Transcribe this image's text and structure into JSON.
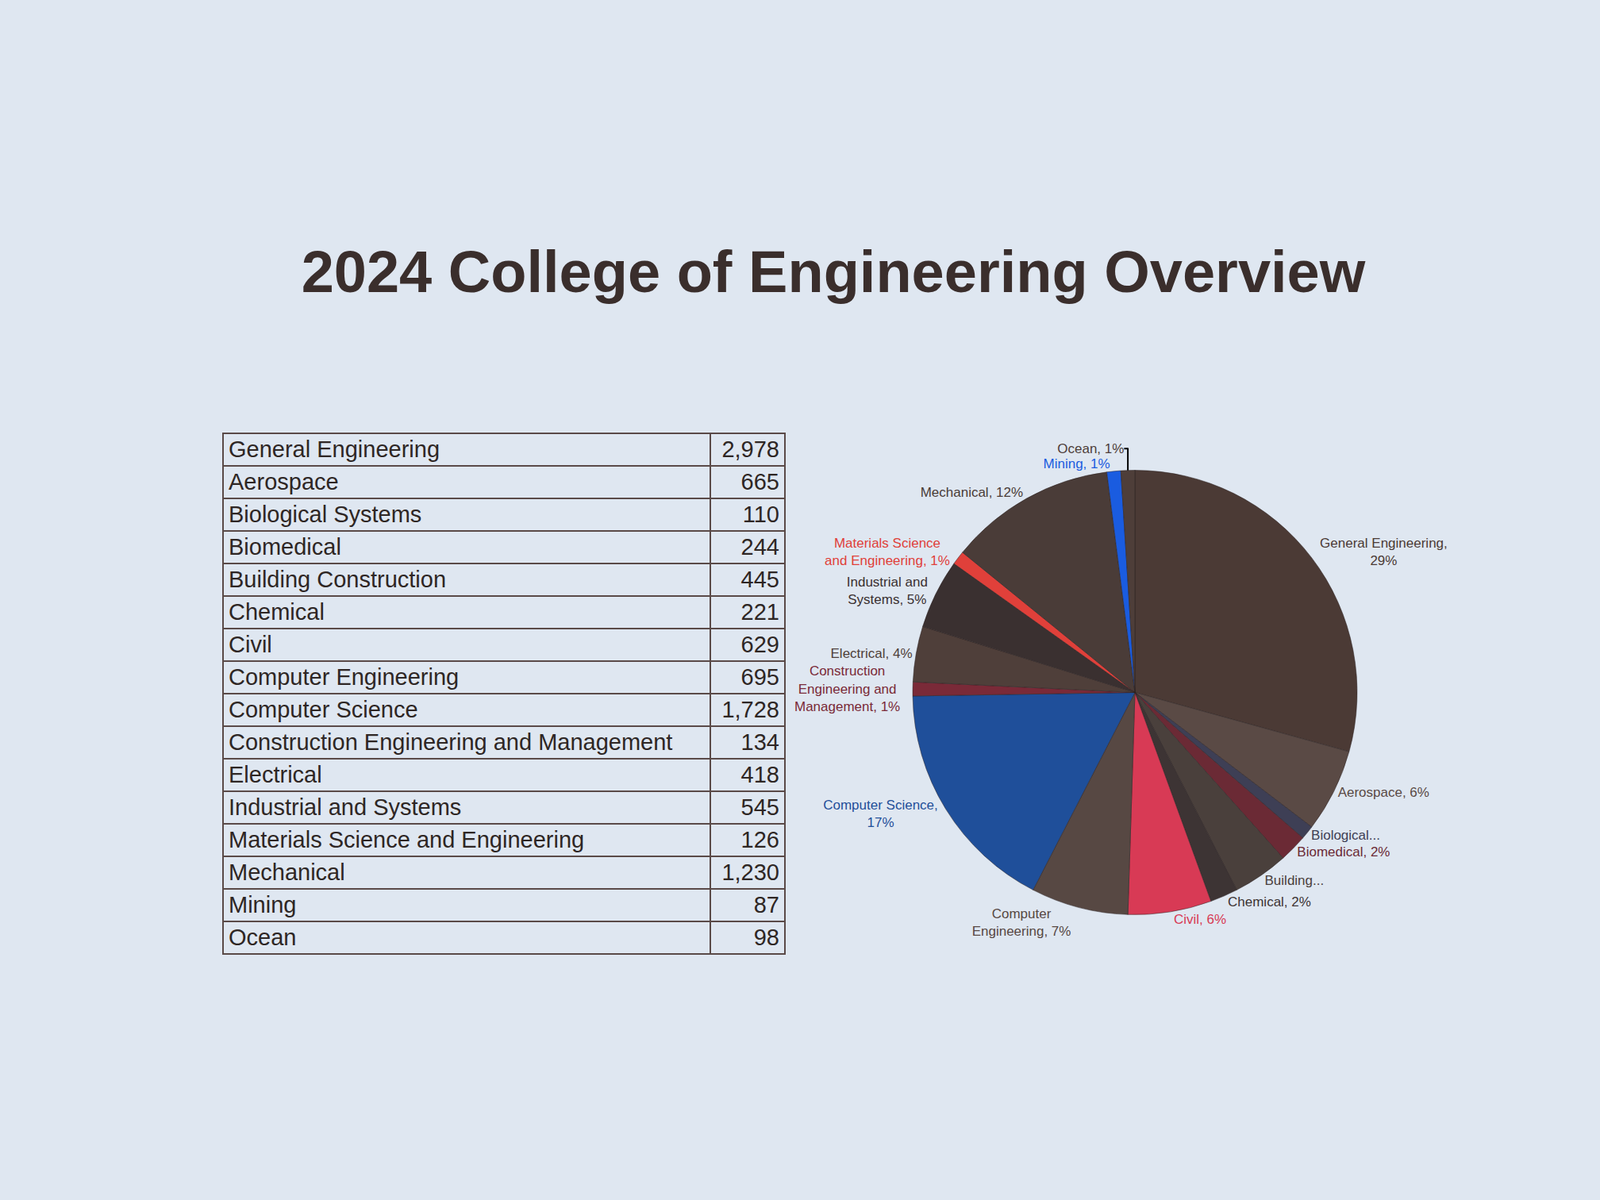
{
  "title": "2024 College of Engineering Overview",
  "table": {
    "rows": [
      [
        "General Engineering",
        "2,978"
      ],
      [
        "Aerospace",
        "665"
      ],
      [
        "Biological Systems",
        "110"
      ],
      [
        "Biomedical",
        "244"
      ],
      [
        "Building Construction",
        "445"
      ],
      [
        "Chemical",
        "221"
      ],
      [
        "Civil",
        "629"
      ],
      [
        "Computer Engineering",
        "695"
      ],
      [
        "Computer Science",
        "1,728"
      ],
      [
        "Construction Engineering and Management",
        "134"
      ],
      [
        "Electrical",
        "418"
      ],
      [
        "Industrial and Systems",
        "545"
      ],
      [
        "Materials Science and Engineering",
        "126"
      ],
      [
        "Mechanical",
        "1,230"
      ],
      [
        "Mining",
        "87"
      ],
      [
        "Ocean",
        "98"
      ]
    ]
  },
  "chart_data": {
    "type": "pie",
    "categories": [
      "General Engineering",
      "Aerospace",
      "Biological Systems",
      "Biomedical",
      "Building Construction",
      "Chemical",
      "Civil",
      "Computer Engineering",
      "Computer Science",
      "Construction Engineering and Management",
      "Electrical",
      "Industrial and Systems",
      "Materials Science and Engineering",
      "Mechanical",
      "Mining",
      "Ocean"
    ],
    "values": [
      29,
      6,
      1,
      2,
      4,
      2,
      6,
      7,
      17,
      1,
      4,
      5,
      1,
      12,
      1,
      1
    ],
    "value_labels": [
      "General Engineering, 29%",
      "Aerospace, 6%",
      "Biological...",
      "Biomedical, 2%",
      "Building...",
      "Chemical, 2%",
      "Civil, 6%",
      "Computer Engineering, 7%",
      "Computer Science, 17%",
      "Construction Engineering and Management, 1%",
      "Electrical, 4%",
      "Industrial and Systems, 5%",
      "Materials Science and Engineering, 1%",
      "Mechanical, 12%",
      "Mining, 1%",
      "Ocean, 1%"
    ],
    "colors": [
      "#4b3a35",
      "#5a4a45",
      "#3e3f55",
      "#6b2a35",
      "#4a403c",
      "#3d3434",
      "#d83a55",
      "#574843",
      "#1f4f9a",
      "#7a2a38",
      "#4f3f3a",
      "#3a3030",
      "#e0403a",
      "#4a3c38",
      "#1a5ce0",
      "#4e3e39"
    ],
    "data_labels": true
  }
}
